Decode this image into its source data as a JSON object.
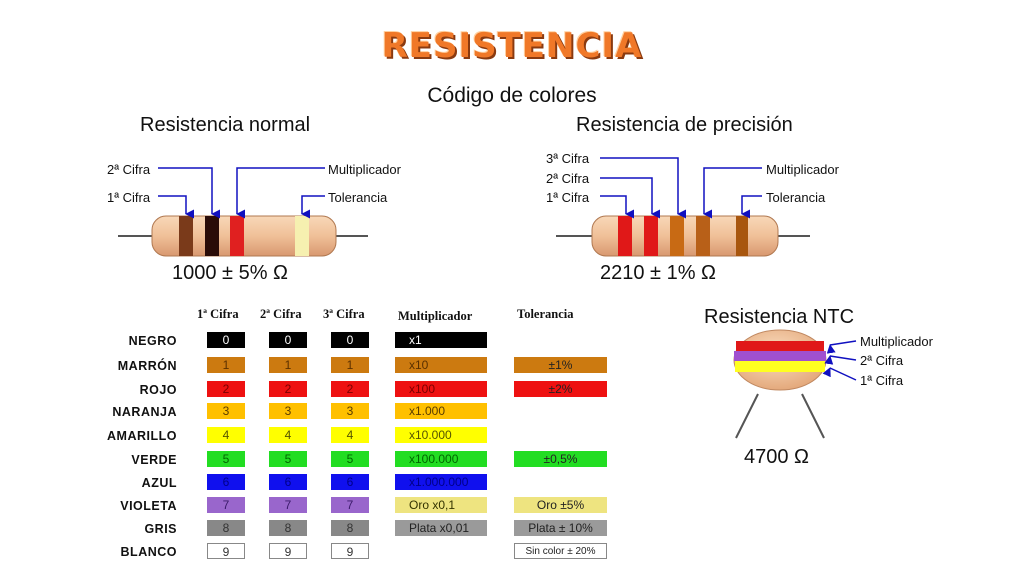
{
  "title": "RESISTENCIA",
  "subtitle": "Código de colores",
  "normal": {
    "heading": "Resistencia normal",
    "labels": {
      "cifra2": "2ª Cifra",
      "cifra1": "1ª Cifra",
      "multiplicador": "Multiplicador",
      "tolerancia": "Tolerancia"
    },
    "bands": [
      "#7a3a1a",
      "#2a0c08",
      "#e02020",
      "#f6f0b0"
    ],
    "value": "1000 ± 5% Ω"
  },
  "precision": {
    "heading": "Resistencia de precisión",
    "labels": {
      "cifra3": "3ª Cifra",
      "cifra2": "2ª Cifra",
      "cifra1": "1ª Cifra",
      "multiplicador": "Multiplicador",
      "tolerancia": "Tolerancia"
    },
    "bands": [
      "#e01818",
      "#e01818",
      "#c86a14",
      "#b86018",
      "#a8560e"
    ],
    "value": "2210 ± 1% Ω"
  },
  "ntc": {
    "heading": "Resistencia NTC",
    "labels": {
      "multiplicador": "Multiplicador",
      "cifra2": "2ª Cifra",
      "cifra1": "1ª Cifra"
    },
    "bands": [
      "#e01818",
      "#a050d0",
      "#ffff20"
    ],
    "value": "4700 Ω"
  },
  "table": {
    "headers": {
      "cifra1": "1ª Cifra",
      "cifra2": "2ª Cifra",
      "cifra3": "3ª Cifra",
      "multiplicador": "Multiplicador",
      "tolerancia": "Tolerancia"
    },
    "rows": [
      {
        "name": "NEGRO",
        "color": "#000000",
        "digit_text": "#ffffff",
        "digit": "0",
        "mult": "x1",
        "mult_color": "#000000",
        "mult_text": "#ffffff",
        "tol": "",
        "tol_color": ""
      },
      {
        "name": "MARRÓN",
        "color": "#cc7a10",
        "digit_text": "#5a3000",
        "digit": "1",
        "mult": "x10",
        "mult_color": "#cc7a10",
        "mult_text": "#5a3000",
        "tol": "±1%",
        "tol_color": "#cc7a10"
      },
      {
        "name": "ROJO",
        "color": "#ee1111",
        "digit_text": "#7a0000",
        "digit": "2",
        "mult": "x100",
        "mult_color": "#ee1111",
        "mult_text": "#7a0000",
        "tol": "±2%",
        "tol_color": "#ee1111"
      },
      {
        "name": "NARANJA",
        "color": "#ffc000",
        "digit_text": "#5a3c00",
        "digit": "3",
        "mult": "x1.000",
        "mult_color": "#ffc000",
        "mult_text": "#5a3c00",
        "tol": "",
        "tol_color": ""
      },
      {
        "name": "AMARILLO",
        "color": "#ffff00",
        "digit_text": "#555500",
        "digit": "4",
        "mult": "x10.000",
        "mult_color": "#ffff00",
        "mult_text": "#555500",
        "tol": "",
        "tol_color": ""
      },
      {
        "name": "VERDE",
        "color": "#22dd22",
        "digit_text": "#006600",
        "digit": "5",
        "mult": "x100.000",
        "mult_color": "#22dd22",
        "mult_text": "#006600",
        "tol": "±0,5%",
        "tol_color": "#22dd22"
      },
      {
        "name": "AZUL",
        "color": "#1010ee",
        "digit_text": "#000088",
        "digit": "6",
        "mult": "x1.000.000",
        "mult_color": "#1010ee",
        "mult_text": "#000088",
        "tol": "",
        "tol_color": ""
      },
      {
        "name": "VIOLETA",
        "color": "#9966cc",
        "digit_text": "#3a1a6a",
        "digit": "7",
        "mult": "Oro x0,1",
        "mult_color": "#eee480",
        "mult_text": "#333300",
        "tol": "Oro ±5%",
        "tol_color": "#eee480"
      },
      {
        "name": "GRIS",
        "color": "#888888",
        "digit_text": "#333333",
        "digit": "8",
        "mult": "Plata x0,01",
        "mult_color": "#9a9a9a",
        "mult_text": "#222222",
        "tol": "Plata ± 10%",
        "tol_color": "#9a9a9a"
      },
      {
        "name": "BLANCO",
        "color": "#ffffff",
        "digit_text": "#333333",
        "digit": "9",
        "mult": "",
        "mult_color": "",
        "mult_text": "#333333",
        "tol": "Sin color ± 20%",
        "tol_color": "#ffffff"
      }
    ]
  }
}
